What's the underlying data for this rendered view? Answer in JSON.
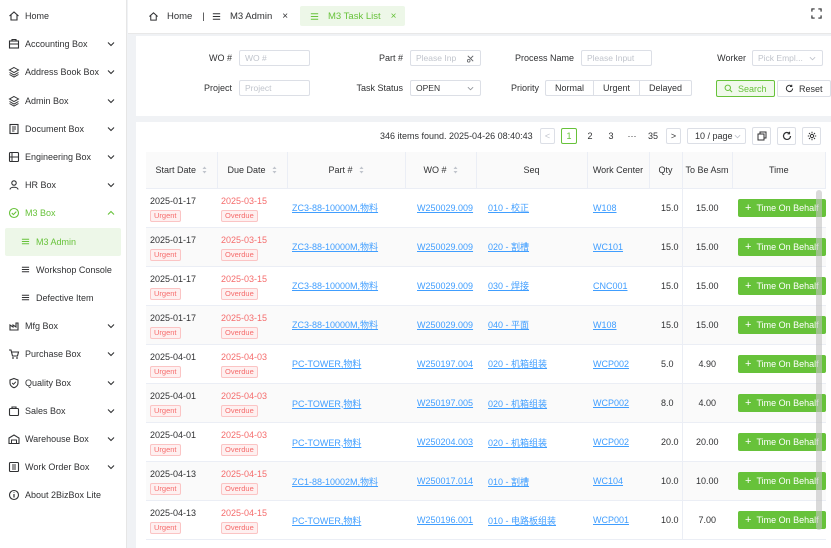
{
  "sidebar": {
    "items": [
      {
        "label": "Home",
        "icon": "home-icon",
        "expandable": false
      },
      {
        "label": "Accounting Box",
        "icon": "accounting-icon",
        "expandable": true
      },
      {
        "label": "Address Book Box",
        "icon": "address-book-icon",
        "expandable": true
      },
      {
        "label": "Admin Box",
        "icon": "admin-icon",
        "expandable": true
      },
      {
        "label": "Document Box",
        "icon": "document-icon",
        "expandable": true
      },
      {
        "label": "Engineering Box",
        "icon": "engineering-icon",
        "expandable": true
      },
      {
        "label": "HR Box",
        "icon": "hr-icon",
        "expandable": true
      },
      {
        "label": "M3 Box",
        "icon": "m3-icon",
        "expandable": true,
        "open": true
      },
      {
        "label": "Mfg Box",
        "icon": "mfg-icon",
        "expandable": true
      },
      {
        "label": "Purchase Box",
        "icon": "purchase-icon",
        "expandable": true
      },
      {
        "label": "Quality Box",
        "icon": "quality-icon",
        "expandable": true
      },
      {
        "label": "Sales Box",
        "icon": "sales-icon",
        "expandable": true
      },
      {
        "label": "Warehouse Box",
        "icon": "warehouse-icon",
        "expandable": true
      },
      {
        "label": "Work Order Box",
        "icon": "work-order-icon",
        "expandable": true
      },
      {
        "label": "About 2BizBox Lite",
        "icon": "info-icon",
        "expandable": false
      }
    ],
    "m3_sub": [
      {
        "label": "M3 Admin",
        "active": true
      },
      {
        "label": "Workshop Console",
        "active": false
      },
      {
        "label": "Defective Item",
        "active": false
      }
    ]
  },
  "tabs": {
    "home": "Home",
    "separator": "|",
    "m3_admin": "M3 Admin",
    "m3_task_list": "M3 Task List",
    "close": "×"
  },
  "search": {
    "wo_label": "WO #",
    "wo_placeholder": "WO #",
    "part_label": "Part #",
    "part_placeholder": "Please Inp",
    "process_label": "Process Name",
    "process_placeholder": "Please Input",
    "worker_label": "Worker",
    "worker_placeholder": "Pick Empl...",
    "project_label": "Project",
    "project_placeholder": "Project",
    "status_label": "Task Status",
    "status_value": "OPEN",
    "priority_label": "Priority",
    "priority_options": [
      "Normal",
      "Urgent",
      "Delayed"
    ],
    "search_btn": "Search",
    "reset_btn": "Reset"
  },
  "pager": {
    "summary": "346 items found. 2025-04-26 08:40:43",
    "prev": "<",
    "pages": [
      "1",
      "2",
      "3",
      "···",
      "35"
    ],
    "next": ">",
    "page_size": "10 / page"
  },
  "table": {
    "headers": [
      "Start Date",
      "Due Date",
      "Part #",
      "WO #",
      "Seq",
      "Work Center",
      "Qty",
      "To Be Asm",
      "Time"
    ],
    "urgent_label": "Urgent",
    "overdue_label": "Overdue",
    "time_btn_label": "Time On Behalf",
    "rows": [
      {
        "start": "2025-01-17",
        "due": "2025-03-15",
        "part": "ZC3-88-10000M,物料",
        "wo": "W250029.009",
        "seq": "010 - 校正",
        "wc": "W108",
        "qty": "15.0",
        "tba": "15.00"
      },
      {
        "start": "2025-01-17",
        "due": "2025-03-15",
        "part": "ZC3-88-10000M,物料",
        "wo": "W250029.009",
        "seq": "020 - 割槽",
        "wc": "WC101",
        "qty": "15.0",
        "tba": "15.00"
      },
      {
        "start": "2025-01-17",
        "due": "2025-03-15",
        "part": "ZC3-88-10000M,物料",
        "wo": "W250029.009",
        "seq": "030 - 焊接",
        "wc": "CNC001",
        "qty": "15.0",
        "tba": "15.00"
      },
      {
        "start": "2025-01-17",
        "due": "2025-03-15",
        "part": "ZC3-88-10000M,物料",
        "wo": "W250029.009",
        "seq": "040 - 平面",
        "wc": "W108",
        "qty": "15.0",
        "tba": "15.00"
      },
      {
        "start": "2025-04-01",
        "due": "2025-04-03",
        "part": "PC-TOWER,物料",
        "wo": "W250197.004",
        "seq": "020 - 机箱组装",
        "wc": "WCP002",
        "qty": "5.0",
        "tba": "4.90"
      },
      {
        "start": "2025-04-01",
        "due": "2025-04-03",
        "part": "PC-TOWER,物料",
        "wo": "W250197.005",
        "seq": "020 - 机箱组装",
        "wc": "WCP002",
        "qty": "8.0",
        "tba": "4.00"
      },
      {
        "start": "2025-04-01",
        "due": "2025-04-03",
        "part": "PC-TOWER,物料",
        "wo": "W250204.003",
        "seq": "020 - 机箱组装",
        "wc": "WCP002",
        "qty": "20.0",
        "tba": "20.00"
      },
      {
        "start": "2025-04-13",
        "due": "2025-04-15",
        "part": "ZC1-88-10002M,物料",
        "wo": "W250017.014",
        "seq": "010 - 割槽",
        "wc": "WC104",
        "qty": "10.0",
        "tba": "10.00"
      },
      {
        "start": "2025-04-13",
        "due": "2025-04-15",
        "part": "PC-TOWER,物料",
        "wo": "W250196.001",
        "seq": "010 - 电路板组装",
        "wc": "WCP001",
        "qty": "10.0",
        "tba": "7.00"
      }
    ]
  },
  "colors": {
    "accent": "#67c23a",
    "danger": "#f56c6c",
    "link": "#409eff"
  }
}
